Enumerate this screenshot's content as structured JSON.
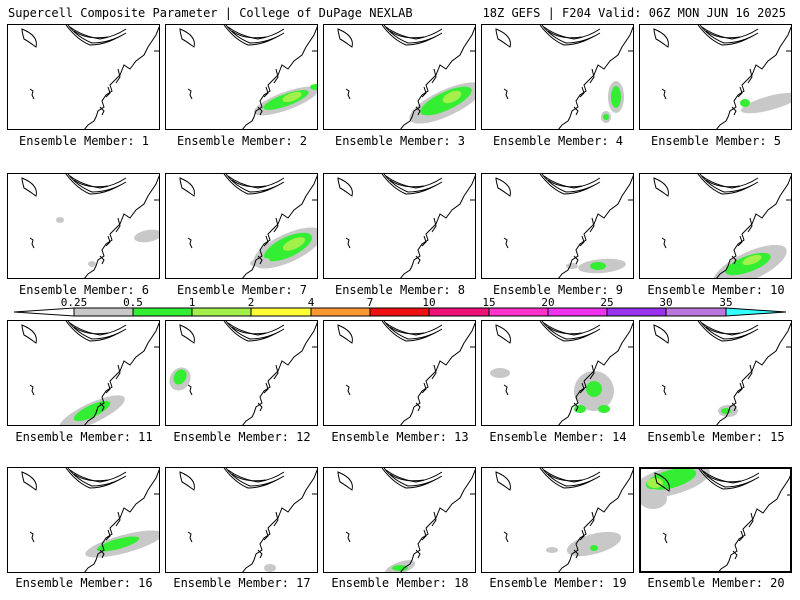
{
  "header": {
    "left_title": "Supercell Composite Parameter | College of DuPage NEXLAB",
    "right_title": "18Z GEFS | F204 Valid: 06Z MON JUN 16 2025"
  },
  "legend": {
    "labels": [
      "0.25",
      "0.5",
      "1",
      "2",
      "4",
      "7",
      "10",
      "15",
      "20",
      "25",
      "30",
      "35"
    ],
    "colors": [
      "#ffffff",
      "#c8c8c8",
      "#33ee33",
      "#a4f04a",
      "#ffff33",
      "#ff9933",
      "#ee1111",
      "#ee1177",
      "#ff33cc",
      "#ee33ee",
      "#9933ee",
      "#bb77dd",
      "#33ffff"
    ]
  },
  "members": [
    {
      "id": 1,
      "label": "Ensemble Member: 1"
    },
    {
      "id": 2,
      "label": "Ensemble Member: 2"
    },
    {
      "id": 3,
      "label": "Ensemble Member: 3"
    },
    {
      "id": 4,
      "label": "Ensemble Member: 4"
    },
    {
      "id": 5,
      "label": "Ensemble Member: 5"
    },
    {
      "id": 6,
      "label": "Ensemble Member: 6"
    },
    {
      "id": 7,
      "label": "Ensemble Member: 7"
    },
    {
      "id": 8,
      "label": "Ensemble Member: 8"
    },
    {
      "id": 9,
      "label": "Ensemble Member: 9"
    },
    {
      "id": 10,
      "label": "Ensemble Member: 10"
    },
    {
      "id": 11,
      "label": "Ensemble Member: 11"
    },
    {
      "id": 12,
      "label": "Ensemble Member: 12"
    },
    {
      "id": 13,
      "label": "Ensemble Member: 13"
    },
    {
      "id": 14,
      "label": "Ensemble Member: 14"
    },
    {
      "id": 15,
      "label": "Ensemble Member: 15"
    },
    {
      "id": 16,
      "label": "Ensemble Member: 16"
    },
    {
      "id": 17,
      "label": "Ensemble Member: 17"
    },
    {
      "id": 18,
      "label": "Ensemble Member: 18"
    },
    {
      "id": 19,
      "label": "Ensemble Member: 19"
    },
    {
      "id": 20,
      "label": "Ensemble Member: 20"
    }
  ]
}
